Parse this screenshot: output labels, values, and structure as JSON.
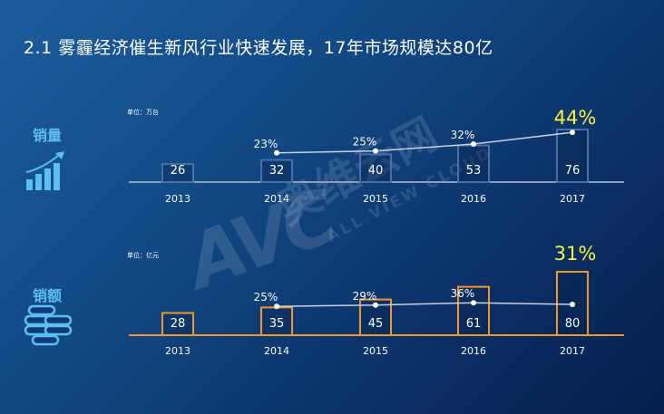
{
  "title": "2.1  雾霾经济催生新风行业快速发展，17年市场规模达80亿",
  "watermark": {
    "logo": "AVC",
    "brand": "奥维云网",
    "tagline": "ALL VIEW CLOUD"
  },
  "colors": {
    "volume_accent": "#4a6fa5",
    "revenue_accent": "#f0962b",
    "highlight": "#f5f53c",
    "label": "#5bc0f0"
  },
  "chart_data": [
    {
      "type": "bar",
      "side_label": "销量",
      "unit": "单位：万台",
      "categories": [
        "2013",
        "2014",
        "2015",
        "2016",
        "2017"
      ],
      "values": [
        26,
        32,
        40,
        53,
        76
      ],
      "growth_rates": [
        null,
        "23%",
        "25%",
        "32%",
        "44%"
      ],
      "growth_values": [
        null,
        23,
        25,
        32,
        44
      ],
      "highlight": "44%"
    },
    {
      "type": "bar",
      "side_label": "销额",
      "unit": "单位：亿元",
      "categories": [
        "2013",
        "2014",
        "2015",
        "2016",
        "2017"
      ],
      "values": [
        28,
        35,
        45,
        61,
        80
      ],
      "growth_rates": [
        null,
        "25%",
        "29%",
        "36%",
        "31%"
      ],
      "growth_values": [
        null,
        25,
        29,
        36,
        31
      ],
      "highlight": "31%"
    }
  ]
}
